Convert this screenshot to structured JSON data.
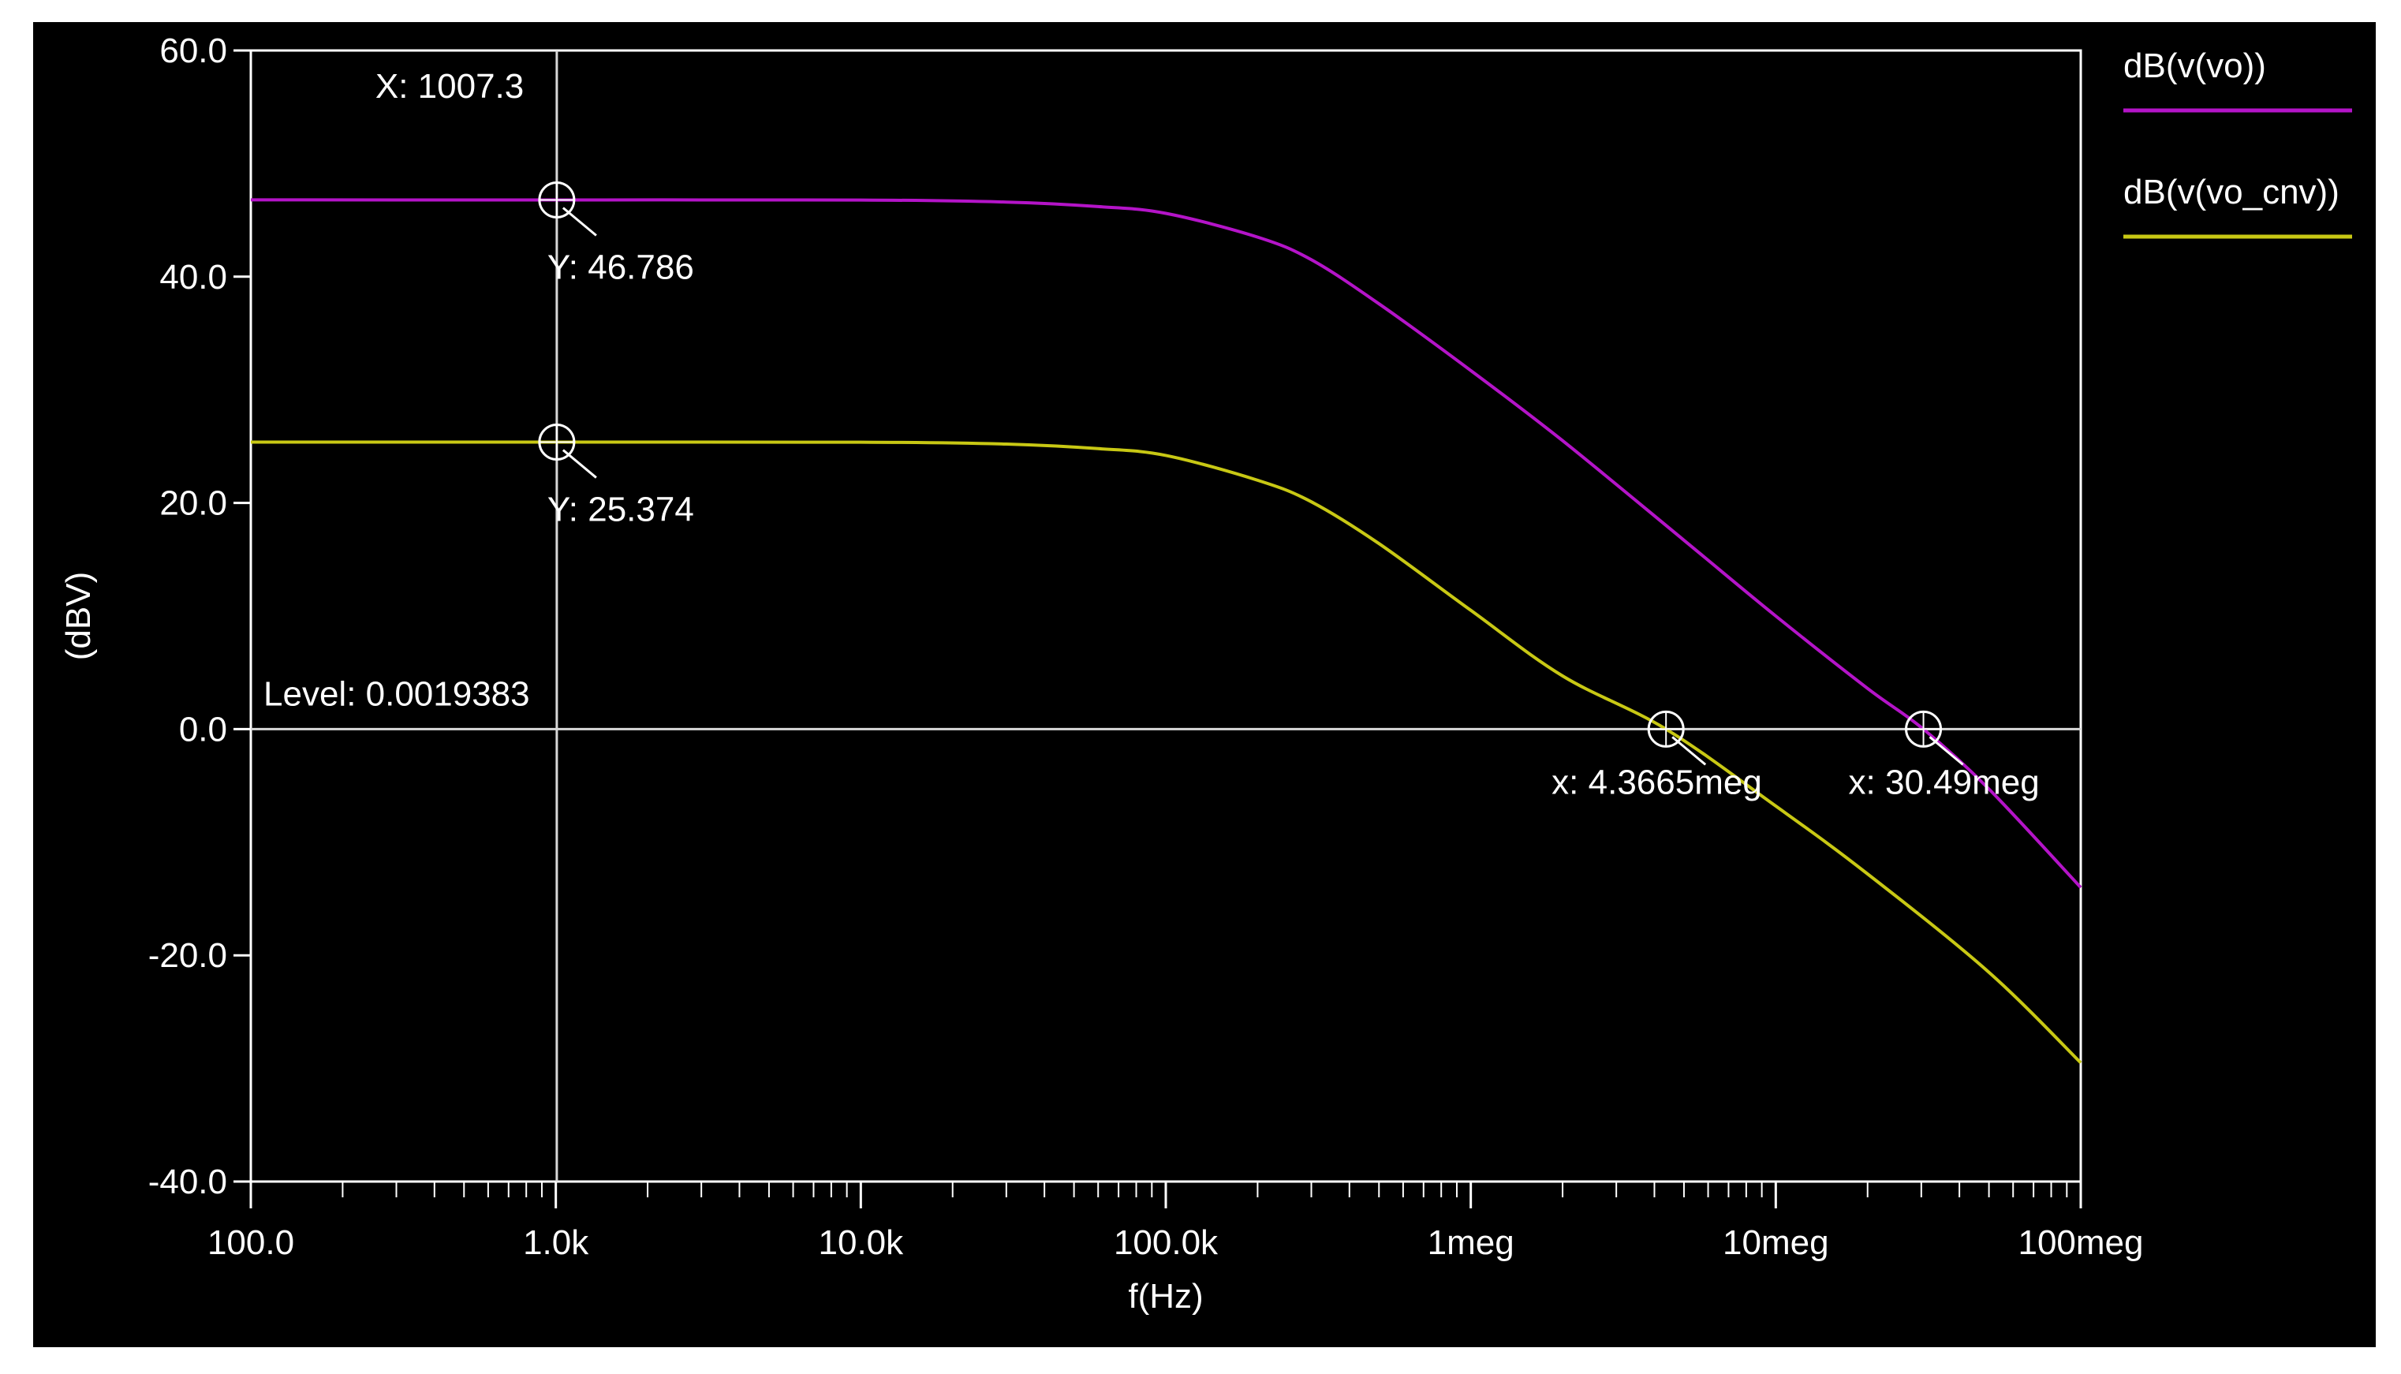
{
  "chart_data": {
    "type": "line",
    "xlabel": "f(Hz)",
    "ylabel": "(dBV)",
    "x_scale": "log",
    "xlim": [
      100,
      100000000
    ],
    "ylim": [
      -40,
      60
    ],
    "x_tick_labels": [
      "100.0",
      "1.0k",
      "10.0k",
      "100.0k",
      "1meg",
      "10meg",
      "100meg"
    ],
    "y_tick_labels": [
      "60.0",
      "40.0",
      "20.0",
      "0.0",
      "-20.0",
      "-40.0"
    ],
    "y_ticks": [
      60,
      40,
      20,
      0,
      -20,
      -40
    ],
    "legend_placement": "right",
    "series": [
      {
        "name": "dB(v(vo))",
        "color": "#b414c8",
        "x": [
          100,
          1000,
          10000,
          30000,
          60000,
          100000,
          200000,
          300000,
          500000,
          1000000,
          2000000,
          5000000,
          10000000,
          20000000,
          30490000,
          50000000,
          100000000
        ],
        "y": [
          46.79,
          46.786,
          46.78,
          46.6,
          46.2,
          45.6,
          43.5,
          41.5,
          37.6,
          31.7,
          25.5,
          16.7,
          10.0,
          3.6,
          0.0,
          -5.3,
          -14.0
        ]
      },
      {
        "name": "dB(v(vo_cnv))",
        "color": "#c8c814",
        "x": [
          100,
          1000,
          10000,
          30000,
          60000,
          100000,
          200000,
          300000,
          500000,
          1000000,
          2000000,
          4366500,
          10000000,
          20000000,
          50000000,
          100000000
        ],
        "y": [
          25.38,
          25.374,
          25.37,
          25.2,
          24.8,
          24.2,
          22.0,
          20.1,
          16.4,
          10.5,
          4.7,
          0.0,
          -6.8,
          -12.8,
          -21.5,
          -29.5
        ]
      }
    ],
    "cursors": {
      "vertical_x_label": "X: 1007.3",
      "vertical_x": 1007.3,
      "level_label": "Level: 0.0019383",
      "level": 0.0019383,
      "markers": [
        {
          "label": "Y: 46.786",
          "x": 1007.3,
          "y": 46.786
        },
        {
          "label": "Y: 25.374",
          "x": 1007.3,
          "y": 25.374
        },
        {
          "label": "x: 4.3665meg",
          "x": 4366500,
          "y": 0.0019383
        },
        {
          "label": "x: 30.49meg",
          "x": 30490000,
          "y": 0.0019383
        }
      ]
    }
  },
  "colors": {
    "background": "#000000",
    "axis": "#ffffff",
    "cursor": "#d8d8d8"
  }
}
